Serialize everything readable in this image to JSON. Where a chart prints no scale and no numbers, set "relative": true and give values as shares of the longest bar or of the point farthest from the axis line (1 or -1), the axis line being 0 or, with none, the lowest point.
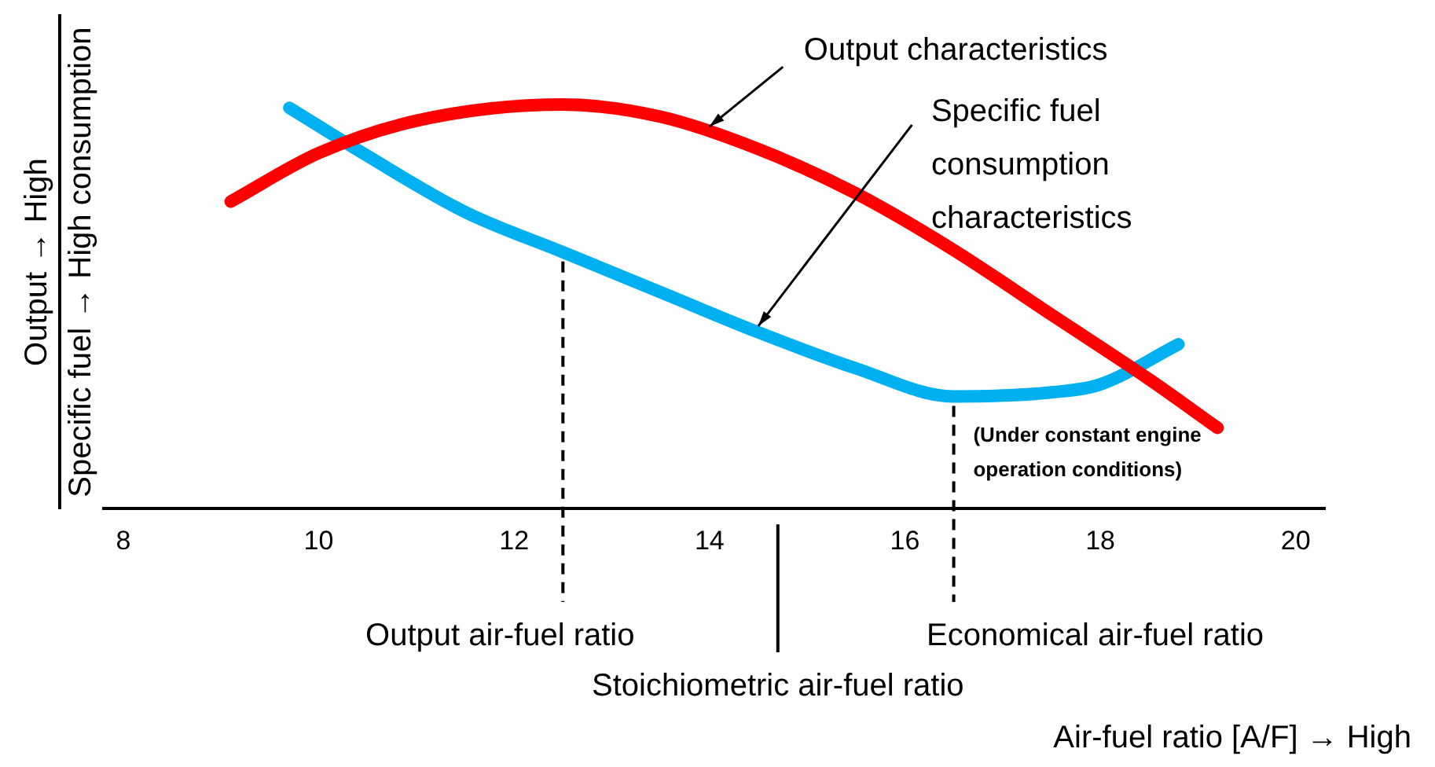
{
  "chart_data": {
    "type": "line",
    "relative": true,
    "ylabel": "Output → High",
    "y2label": "Specific fuel → High consumption",
    "xlim": [
      7.8,
      20.3
    ],
    "xticks": [
      8,
      10,
      12,
      14,
      16,
      18,
      20
    ],
    "grid": false,
    "legend": false,
    "marker": "none",
    "line_style": "solid",
    "series": [
      {
        "type": "line",
        "color": "#ff0000",
        "x": [
          9.1,
          10,
          11,
          12.5,
          13.5,
          14.5,
          15.5,
          16.5,
          17.5,
          18.5,
          19.2
        ],
        "values": [
          0.76,
          0.88,
          0.96,
          1.0,
          0.97,
          0.89,
          0.78,
          0.64,
          0.48,
          0.32,
          0.2
        ]
      },
      {
        "type": "line",
        "axis": "y2",
        "color": "#00b0f0",
        "x": [
          9.7,
          10.5,
          11.5,
          12.5,
          13.5,
          14.5,
          15.5,
          16.5,
          17.5,
          18,
          18.8
        ],
        "values": [
          1.0,
          0.88,
          0.74,
          0.64,
          0.54,
          0.44,
          0.35,
          0.28,
          0.29,
          0.31,
          0.41
        ]
      }
    ],
    "ref_lines": [
      {
        "axis": "x",
        "value": 12.5,
        "label": "Output air-fuel ratio",
        "line_style": "dashed"
      },
      {
        "axis": "x",
        "value": 14.7,
        "label": "Stoichiometric air-fuel ratio",
        "line_style": "solid"
      },
      {
        "axis": "x",
        "value": 16.5,
        "label": "Economical air-fuel ratio",
        "line_style": "dashed"
      }
    ],
    "annotations": [
      {
        "text": "Output characteristics",
        "x": 14.0,
        "y": 0.93
      },
      {
        "text": "Specific fuel consumption characteristics",
        "x": 14.5,
        "y": 0.44
      },
      "(Under constant engine operation conditions)",
      "Air-fuel ratio [A/F] → High"
    ]
  }
}
